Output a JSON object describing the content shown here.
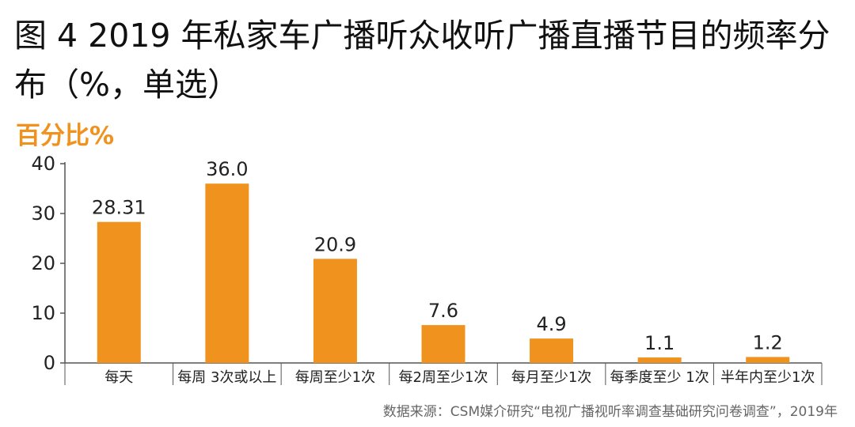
{
  "header": {
    "title": "图 4 2019 年私家车广播听众收听广播直播节目的频率分布（%，单选）",
    "unit_label": "百分比%"
  },
  "footer": {
    "source": "数据来源：CSM媒介研究“电视广播视听率调查基础研究问卷调查”，2019年"
  },
  "chart_data": {
    "type": "bar",
    "title": "图 4 2019 年私家车广播听众收听广播直播节目的频率分布（%，单选）",
    "ylabel": "百分比%",
    "xlabel": "",
    "categories": [
      "每天",
      "每周 3次或以上",
      "每周至少1次",
      "每2周至少1次",
      "每月至少1次",
      "每季度至少 1次",
      "半年内至少1次"
    ],
    "values": [
      28.31,
      36.0,
      20.9,
      7.6,
      4.9,
      1.1,
      1.2
    ],
    "value_labels": [
      "28.31",
      "36.0",
      "20.9",
      "7.6",
      "4.9",
      "1.1",
      "1.2"
    ],
    "ylim": [
      0,
      40
    ],
    "yticks": [
      0,
      10,
      20,
      30,
      40
    ],
    "grid": false,
    "legend": "none",
    "bar_color": "#f0921e"
  }
}
